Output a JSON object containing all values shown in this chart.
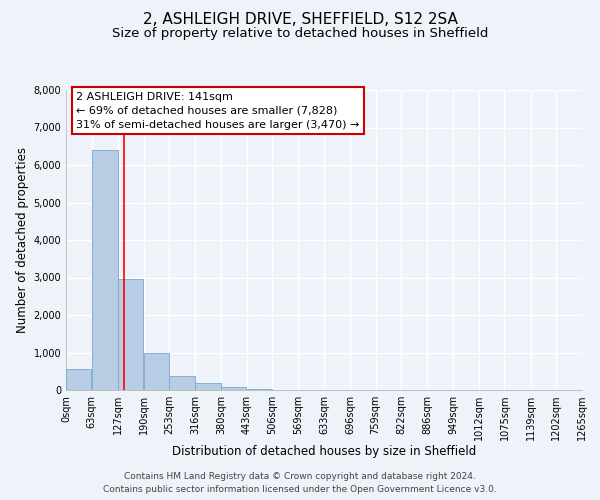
{
  "title": "2, ASHLEIGH DRIVE, SHEFFIELD, S12 2SA",
  "subtitle": "Size of property relative to detached houses in Sheffield",
  "xlabel": "Distribution of detached houses by size in Sheffield",
  "ylabel": "Number of detached properties",
  "bar_edges": [
    0,
    63,
    127,
    190,
    253,
    316,
    380,
    443,
    506,
    569,
    633,
    696,
    759,
    822,
    886,
    949,
    1012,
    1075,
    1139,
    1202,
    1265
  ],
  "bar_heights": [
    550,
    6400,
    2950,
    1000,
    380,
    175,
    80,
    20,
    0,
    0,
    0,
    0,
    0,
    0,
    0,
    0,
    0,
    0,
    0,
    0
  ],
  "bar_color": "#b8cce4",
  "bar_edgecolor": "#7aa6d0",
  "red_line_x": 141,
  "ylim": [
    0,
    8000
  ],
  "yticks": [
    0,
    1000,
    2000,
    3000,
    4000,
    5000,
    6000,
    7000,
    8000
  ],
  "annotation_title": "2 ASHLEIGH DRIVE: 141sqm",
  "annotation_line1": "← 69% of detached houses are smaller (7,828)",
  "annotation_line2": "31% of semi-detached houses are larger (3,470) →",
  "footer_line1": "Contains HM Land Registry data © Crown copyright and database right 2024.",
  "footer_line2": "Contains public sector information licensed under the Open Government Licence v3.0.",
  "background_color": "#eef2f9",
  "grid_color": "#ffffff",
  "title_fontsize": 11,
  "subtitle_fontsize": 9.5,
  "axis_label_fontsize": 8.5,
  "tick_fontsize": 7,
  "annotation_fontsize": 8,
  "footer_fontsize": 6.5
}
